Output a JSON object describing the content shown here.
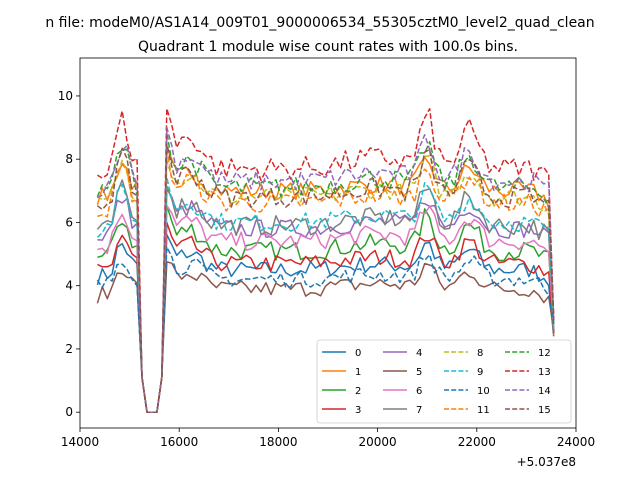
{
  "figure": {
    "suptitle": "n file: modeM0/AS1A14_009T01_9000006534_55305cztM0_level2_quad_clean"
  },
  "chart_data": {
    "type": "line",
    "title": "Quadrant 1 module wise count rates with 100.0s bins.",
    "xlabel": "",
    "ylabel": "",
    "x_offset_label": "+5.037e8",
    "xlim": [
      14000,
      24000
    ],
    "ylim": [
      -0.5,
      11.2
    ],
    "xticks": [
      14000,
      16000,
      18000,
      20000,
      22000,
      24000
    ],
    "yticks": [
      0,
      2,
      4,
      6,
      8,
      10
    ],
    "x_start": 14350,
    "x_step": 100,
    "x_count": 93,
    "gap": {
      "start": 15250,
      "end": 15650
    },
    "grid": false,
    "legend": {
      "placement": "lower-right",
      "columns": 4
    },
    "series": [
      {
        "name": "0",
        "color": "#1f77b4",
        "dash": "solid",
        "base": 4.5,
        "amp": 1.0
      },
      {
        "name": "1",
        "color": "#ff7f0e",
        "dash": "solid",
        "base": 7.0,
        "amp": 1.1
      },
      {
        "name": "2",
        "color": "#2ca02c",
        "dash": "solid",
        "base": 5.1,
        "amp": 1.3
      },
      {
        "name": "3",
        "color": "#d62728",
        "dash": "solid",
        "base": 4.7,
        "amp": 1.1
      },
      {
        "name": "4",
        "color": "#9467bd",
        "dash": "solid",
        "base": 5.8,
        "amp": 1.2
      },
      {
        "name": "5",
        "color": "#8c564b",
        "dash": "solid",
        "base": 3.9,
        "amp": 0.9
      },
      {
        "name": "6",
        "color": "#e377c2",
        "dash": "solid",
        "base": 5.4,
        "amp": 1.2
      },
      {
        "name": "7",
        "color": "#7f7f7f",
        "dash": "solid",
        "base": 5.9,
        "amp": 1.4
      },
      {
        "name": "8",
        "color": "#bcbd22",
        "dash": "dashed",
        "base": 6.8,
        "amp": 1.3
      },
      {
        "name": "9",
        "color": "#17becf",
        "dash": "dashed",
        "base": 6.0,
        "amp": 1.2
      },
      {
        "name": "10",
        "color": "#1f77b4",
        "dash": "dashed",
        "base": 4.2,
        "amp": 0.9
      },
      {
        "name": "11",
        "color": "#ff7f0e",
        "dash": "dashed",
        "base": 6.6,
        "amp": 1.4
      },
      {
        "name": "12",
        "color": "#2ca02c",
        "dash": "dashed",
        "base": 7.1,
        "amp": 1.6
      },
      {
        "name": "13",
        "color": "#d62728",
        "dash": "dashed",
        "base": 7.7,
        "amp": 1.9
      },
      {
        "name": "14",
        "color": "#9467bd",
        "dash": "dashed",
        "base": 7.3,
        "amp": 1.5
      },
      {
        "name": "15",
        "color": "#8c564b",
        "dash": "dashed",
        "base": 6.8,
        "amp": 1.5
      }
    ]
  }
}
